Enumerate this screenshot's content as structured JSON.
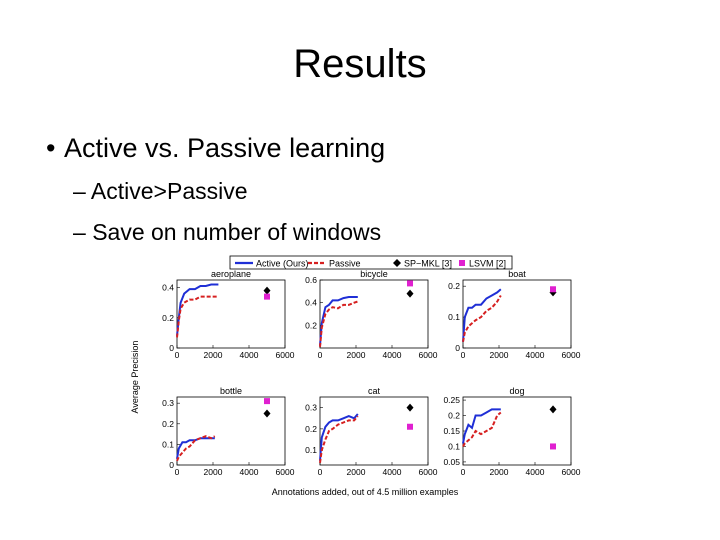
{
  "slide": {
    "title": "Results",
    "bullet": "Active vs. Passive learning",
    "sub_bullets": [
      "Active>Passive",
      "Save on number of windows"
    ]
  },
  "legend": [
    {
      "label": "Active (Ours)",
      "color": "#1f2fd6",
      "style": "solid-line"
    },
    {
      "label": "Passive",
      "color": "#d62020",
      "style": "dashed-line"
    },
    {
      "label": "SP−MKL [3]",
      "color": "#000000",
      "style": "diamond"
    },
    {
      "label": "LSVM [2]",
      "color": "#e020d0",
      "style": "square"
    }
  ],
  "shared_ylabel": "Average Precision",
  "shared_xlabel": "Annotations added, out of 4.5 million examples",
  "chart_data": [
    {
      "type": "line",
      "title": "aeroplane",
      "xlim": [
        0,
        6000
      ],
      "ylim": [
        0,
        0.45
      ],
      "xticks": [
        0,
        2000,
        4000,
        6000
      ],
      "yticks": [
        0,
        0.2,
        0.4
      ],
      "ytick_labels": [
        "0",
        "0.2",
        "0.4"
      ],
      "series": [
        {
          "name": "Active (Ours)",
          "x": [
            0,
            100,
            200,
            400,
            700,
            1000,
            1300,
            1600,
            1900,
            2100,
            2300
          ],
          "y": [
            0.08,
            0.2,
            0.3,
            0.36,
            0.39,
            0.39,
            0.41,
            0.41,
            0.42,
            0.42,
            0.42
          ]
        },
        {
          "name": "Passive",
          "x": [
            0,
            100,
            200,
            400,
            700,
            1000,
            1300,
            1600,
            1900,
            2100,
            2300
          ],
          "y": [
            0.07,
            0.18,
            0.26,
            0.3,
            0.32,
            0.32,
            0.34,
            0.34,
            0.34,
            0.34,
            0.34
          ]
        }
      ],
      "markers": [
        {
          "name": "SP−MKL [3]",
          "x": 5000,
          "y": 0.38
        },
        {
          "name": "LSVM [2]",
          "x": 5000,
          "y": 0.34
        }
      ]
    },
    {
      "type": "line",
      "title": "bicycle",
      "xlim": [
        0,
        6000
      ],
      "ylim": [
        0,
        0.6
      ],
      "xticks": [
        0,
        2000,
        4000,
        6000
      ],
      "yticks": [
        0.2,
        0.4,
        0.6
      ],
      "ytick_labels": [
        "0.2",
        "0.4",
        "0.6"
      ],
      "series": [
        {
          "name": "Active (Ours)",
          "x": [
            0,
            100,
            300,
            500,
            700,
            1000,
            1300,
            1600,
            1900,
            2100
          ],
          "y": [
            0.02,
            0.22,
            0.36,
            0.38,
            0.42,
            0.42,
            0.44,
            0.45,
            0.45,
            0.45
          ]
        },
        {
          "name": "Passive",
          "x": [
            0,
            100,
            300,
            500,
            700,
            1000,
            1300,
            1600,
            1900,
            2100
          ],
          "y": [
            0.01,
            0.18,
            0.3,
            0.34,
            0.36,
            0.35,
            0.38,
            0.38,
            0.4,
            0.41
          ]
        }
      ],
      "markers": [
        {
          "name": "SP−MKL [3]",
          "x": 5000,
          "y": 0.48
        },
        {
          "name": "LSVM [2]",
          "x": 5000,
          "y": 0.57
        }
      ]
    },
    {
      "type": "line",
      "title": "boat",
      "xlim": [
        0,
        6000
      ],
      "ylim": [
        0,
        0.22
      ],
      "xticks": [
        0,
        2000,
        4000,
        6000
      ],
      "yticks": [
        0,
        0.1,
        0.2
      ],
      "ytick_labels": [
        "0",
        "0.1",
        "0.2"
      ],
      "series": [
        {
          "name": "Active (Ours)",
          "x": [
            0,
            100,
            300,
            500,
            700,
            1000,
            1300,
            1600,
            1900,
            2100
          ],
          "y": [
            0.02,
            0.1,
            0.13,
            0.13,
            0.14,
            0.14,
            0.16,
            0.17,
            0.18,
            0.19
          ]
        },
        {
          "name": "Passive",
          "x": [
            0,
            100,
            300,
            500,
            700,
            1000,
            1300,
            1600,
            1900,
            2100
          ],
          "y": [
            0.02,
            0.05,
            0.07,
            0.08,
            0.09,
            0.1,
            0.12,
            0.13,
            0.15,
            0.17
          ]
        }
      ],
      "markers": [
        {
          "name": "SP−MKL [3]",
          "x": 5000,
          "y": 0.18
        },
        {
          "name": "LSVM [2]",
          "x": 5000,
          "y": 0.19
        }
      ]
    },
    {
      "type": "line",
      "title": "bottle",
      "xlim": [
        0,
        6000
      ],
      "ylim": [
        0,
        0.33
      ],
      "xticks": [
        0,
        2000,
        4000,
        6000
      ],
      "yticks": [
        0,
        0.1,
        0.2,
        0.3
      ],
      "ytick_labels": [
        "0",
        "0.1",
        "0.2",
        "0.3"
      ],
      "series": [
        {
          "name": "Active (Ours)",
          "x": [
            0,
            100,
            300,
            500,
            700,
            1000,
            1300,
            1600,
            1900,
            2100
          ],
          "y": [
            0.03,
            0.08,
            0.11,
            0.11,
            0.12,
            0.12,
            0.13,
            0.13,
            0.13,
            0.13
          ]
        },
        {
          "name": "Passive",
          "x": [
            0,
            100,
            300,
            500,
            700,
            1000,
            1300,
            1600,
            1900,
            2100
          ],
          "y": [
            0.02,
            0.04,
            0.06,
            0.08,
            0.09,
            0.12,
            0.13,
            0.14,
            0.13,
            0.14
          ]
        }
      ],
      "markers": [
        {
          "name": "SP−MKL [3]",
          "x": 5000,
          "y": 0.25
        },
        {
          "name": "LSVM [2]",
          "x": 5000,
          "y": 0.31
        }
      ]
    },
    {
      "type": "line",
      "title": "cat",
      "xlim": [
        0,
        6000
      ],
      "ylim": [
        0.03,
        0.35
      ],
      "xticks": [
        0,
        2000,
        4000,
        6000
      ],
      "yticks": [
        0.1,
        0.2,
        0.3
      ],
      "ytick_labels": [
        "0.1",
        "0.2",
        "0.3"
      ],
      "series": [
        {
          "name": "Active (Ours)",
          "x": [
            0,
            100,
            300,
            500,
            700,
            1000,
            1300,
            1600,
            1900,
            2100
          ],
          "y": [
            0.05,
            0.16,
            0.21,
            0.23,
            0.24,
            0.24,
            0.25,
            0.26,
            0.25,
            0.27
          ]
        },
        {
          "name": "Passive",
          "x": [
            0,
            100,
            300,
            500,
            700,
            1000,
            1300,
            1600,
            1900,
            2100
          ],
          "y": [
            0.04,
            0.1,
            0.15,
            0.19,
            0.2,
            0.22,
            0.23,
            0.24,
            0.24,
            0.26
          ]
        }
      ],
      "markers": [
        {
          "name": "SP−MKL [3]",
          "x": 5000,
          "y": 0.3
        },
        {
          "name": "LSVM [2]",
          "x": 5000,
          "y": 0.21
        }
      ]
    },
    {
      "type": "line",
      "title": "dog",
      "xlim": [
        0,
        6000
      ],
      "ylim": [
        0.04,
        0.26
      ],
      "xticks": [
        0,
        2000,
        4000,
        6000
      ],
      "yticks": [
        0.05,
        0.1,
        0.15,
        0.2,
        0.25
      ],
      "ytick_labels": [
        "0.05",
        "0.1",
        "0.15",
        "0.2",
        "0.25"
      ],
      "series": [
        {
          "name": "Active (Ours)",
          "x": [
            0,
            100,
            300,
            500,
            700,
            1000,
            1300,
            1600,
            1900,
            2100
          ],
          "y": [
            0.11,
            0.14,
            0.17,
            0.16,
            0.2,
            0.2,
            0.21,
            0.22,
            0.22,
            0.22
          ]
        },
        {
          "name": "Passive",
          "x": [
            0,
            100,
            300,
            500,
            700,
            1000,
            1300,
            1600,
            1900,
            2100
          ],
          "y": [
            0.1,
            0.11,
            0.12,
            0.13,
            0.15,
            0.14,
            0.15,
            0.16,
            0.2,
            0.21
          ]
        }
      ],
      "markers": [
        {
          "name": "SP−MKL [3]",
          "x": 5000,
          "y": 0.22
        },
        {
          "name": "LSVM [2]",
          "x": 5000,
          "y": 0.1
        }
      ]
    }
  ]
}
